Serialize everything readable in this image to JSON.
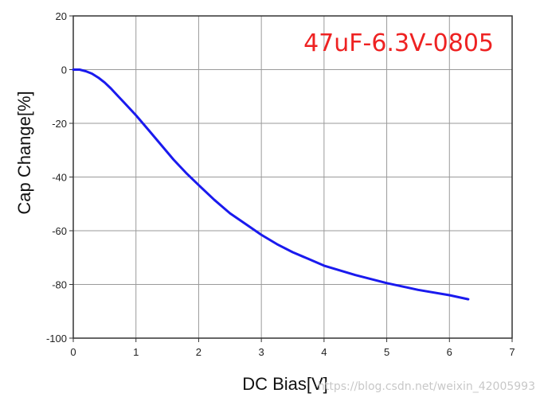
{
  "chart_data": {
    "type": "line",
    "title": "",
    "xlabel": "DC Bias[V]",
    "ylabel": "Cap Change[%]",
    "xlim": [
      0,
      7
    ],
    "ylim": [
      -100,
      20
    ],
    "xticks": [
      0,
      1,
      2,
      3,
      4,
      5,
      6,
      7
    ],
    "yticks": [
      20,
      0,
      -20,
      -40,
      -60,
      -80,
      -100
    ],
    "grid": true,
    "annotation": "47uF-6.3V-0805",
    "annotation_color": "#ee2222",
    "series": [
      {
        "color": "#1a1aee",
        "x": [
          0,
          0.1,
          0.2,
          0.3,
          0.4,
          0.5,
          0.6,
          0.7,
          0.8,
          0.9,
          1.0,
          1.2,
          1.4,
          1.6,
          1.8,
          2.0,
          2.25,
          2.5,
          2.75,
          3.0,
          3.25,
          3.5,
          3.75,
          4.0,
          4.5,
          5.0,
          5.5,
          6.0,
          6.3
        ],
        "y": [
          0,
          0,
          -0.6,
          -1.5,
          -3,
          -4.8,
          -7,
          -9.5,
          -12,
          -14.5,
          -17,
          -22.5,
          -28,
          -33.5,
          -38.5,
          -43,
          -48.5,
          -53.5,
          -57.5,
          -61.5,
          -65,
          -68,
          -70.5,
          -73,
          -76.5,
          -79.5,
          -82,
          -84,
          -85.5
        ]
      }
    ]
  },
  "watermark": "https://blog.csdn.net/weixin_42005993"
}
